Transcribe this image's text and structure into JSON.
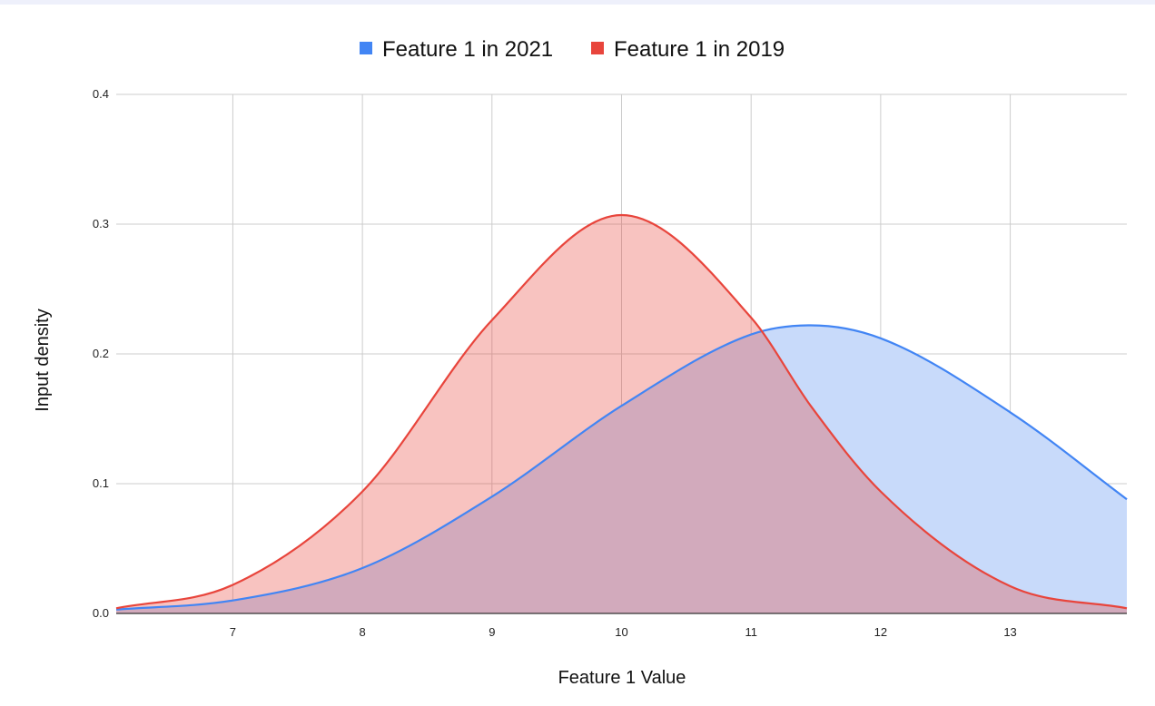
{
  "chart_data": {
    "type": "area",
    "title": "",
    "xlabel": "Feature 1 Value",
    "ylabel": "Input density",
    "xlim": [
      6.1,
      13.9
    ],
    "ylim": [
      0,
      0.4
    ],
    "x_ticks": [
      7,
      8,
      9,
      10,
      11,
      12,
      13
    ],
    "y_ticks": [
      0.0,
      0.1,
      0.2,
      0.3,
      0.4
    ],
    "y_tick_labels": [
      "0.0",
      "0.1",
      "0.2",
      "0.3",
      "0.4"
    ],
    "grid": true,
    "legend_position": "top",
    "x": [
      6.1,
      7,
      8,
      9,
      10,
      11,
      11.46,
      12,
      13,
      13.9
    ],
    "series": [
      {
        "name": "Feature 1 in 2021",
        "color": "#4285f4",
        "fill": "#c8dafa",
        "values": [
          0.003,
          0.01,
          0.035,
          0.09,
          0.16,
          0.215,
          0.222,
          0.212,
          0.155,
          0.088
        ]
      },
      {
        "name": "Feature 1 in 2019",
        "color": "#e8453c",
        "fill": "#f7c3c0",
        "values": [
          0.004,
          0.022,
          0.094,
          0.226,
          0.307,
          0.228,
          0.16,
          0.094,
          0.021,
          0.004
        ]
      }
    ]
  }
}
